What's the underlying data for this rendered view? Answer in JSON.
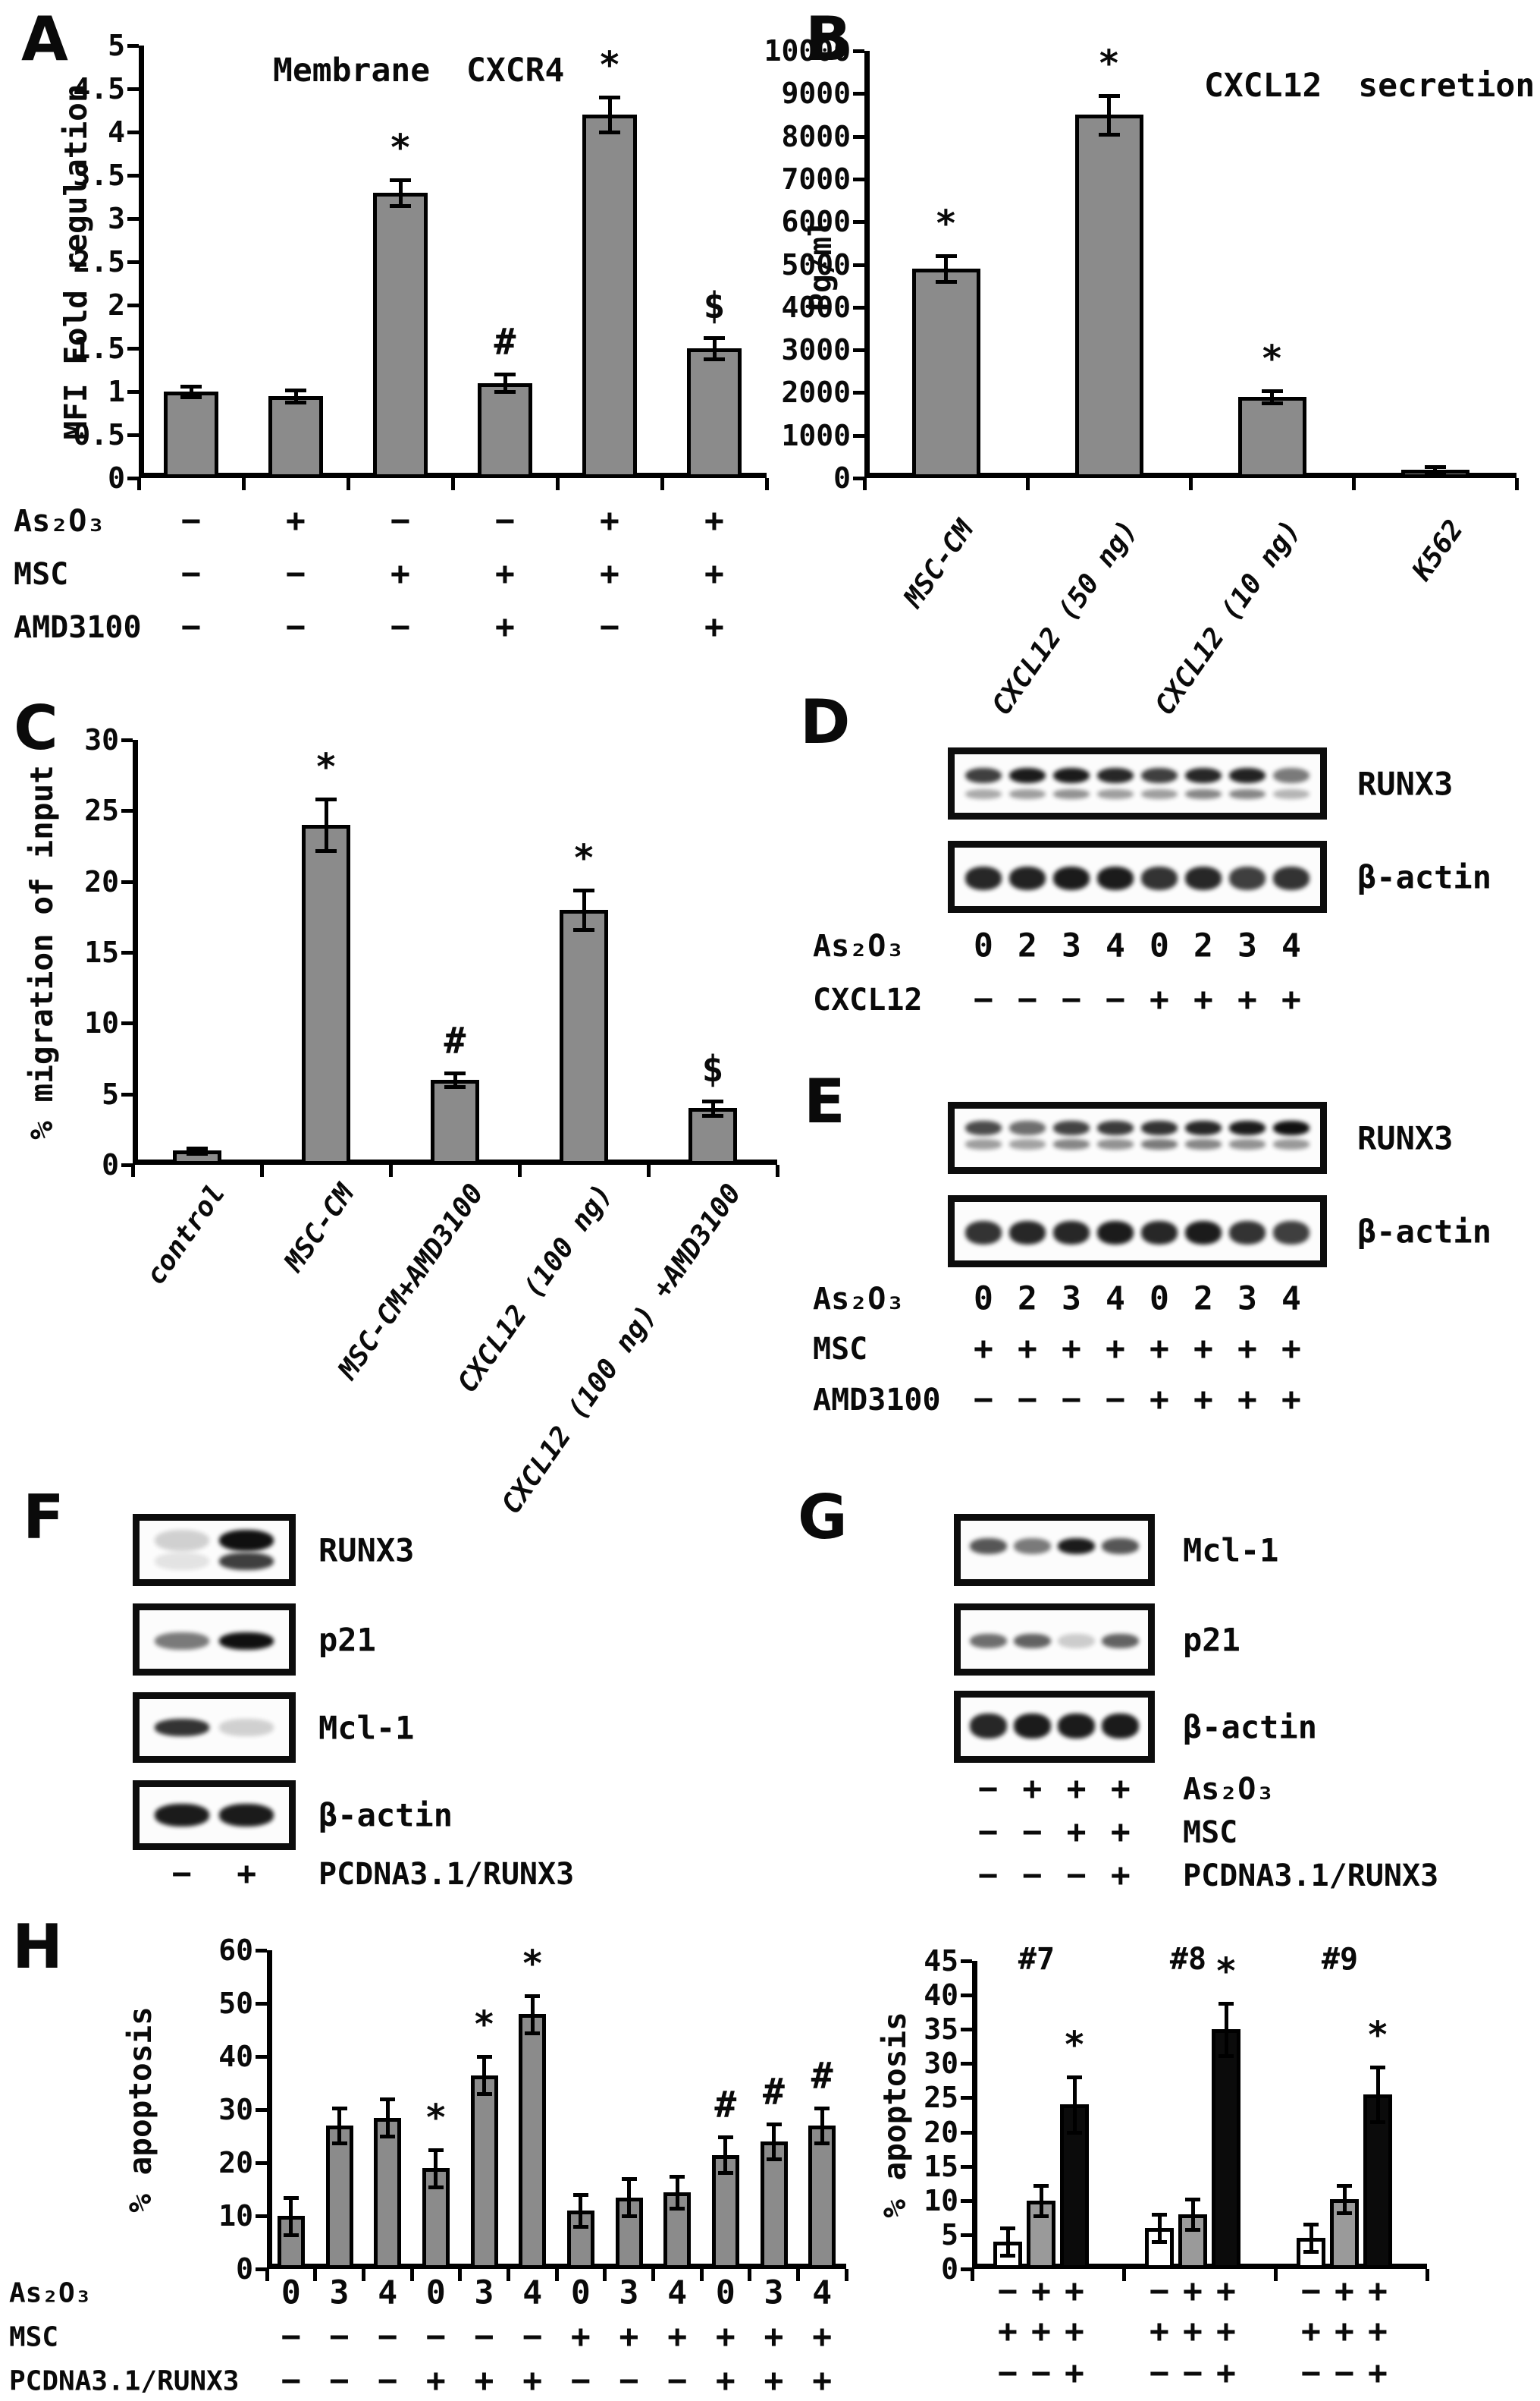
{
  "letters": {
    "A": "A",
    "B": "B",
    "C": "C",
    "D": "D",
    "E": "E",
    "F": "F",
    "G": "G",
    "H": "H"
  },
  "chart_data": [
    {
      "id": "chartA",
      "panel": "A",
      "type": "bar",
      "title": "Membrane CXCR4",
      "ylabel": "MFI Fold regulation",
      "ylim": [
        0,
        5
      ],
      "yticks": [
        "0",
        "0.5",
        "1",
        "1.5",
        "2",
        "2.5",
        "3",
        "3.5",
        "4",
        "4.5",
        "5"
      ],
      "values": [
        1.0,
        0.95,
        3.3,
        1.1,
        4.2,
        1.5
      ],
      "errors": [
        0.06,
        0.07,
        0.15,
        0.1,
        0.2,
        0.12
      ],
      "sig": [
        "",
        "",
        "*",
        "#",
        "*",
        "$"
      ],
      "bar_color": "#8b8b8b",
      "grid": false,
      "matrix": [
        {
          "label": "As₂O₃",
          "values": [
            "−",
            "+",
            "−",
            "−",
            "+",
            "+"
          ]
        },
        {
          "label": "MSC",
          "values": [
            "−",
            "−",
            "+",
            "+",
            "+",
            "+"
          ]
        },
        {
          "label": "AMD3100",
          "values": [
            "−",
            "−",
            "−",
            "+",
            "−",
            "+"
          ]
        }
      ]
    },
    {
      "id": "chartB",
      "panel": "B",
      "type": "bar",
      "title": "CXCL12 secretion",
      "ylabel": "Pg/ml",
      "ylim": [
        0,
        10000
      ],
      "yticks": [
        "0",
        "1000",
        "2000",
        "3000",
        "4000",
        "5000",
        "6000",
        "7000",
        "8000",
        "9000",
        "10000"
      ],
      "categories": [
        "MSC-CM",
        "CXCL12 (50 ng)",
        "CXCL12 (10 ng)",
        "K562"
      ],
      "values": [
        4900,
        8500,
        1900,
        200
      ],
      "errors": [
        300,
        450,
        150,
        60
      ],
      "sig": [
        "*",
        "*",
        "*",
        ""
      ],
      "bar_color": "#8b8b8b",
      "grid": false
    },
    {
      "id": "chartC",
      "panel": "C",
      "type": "bar",
      "title": "",
      "ylabel": "% migration of input",
      "ylim": [
        0,
        30
      ],
      "yticks": [
        "0",
        "5",
        "10",
        "15",
        "20",
        "25",
        "30"
      ],
      "categories": [
        "control",
        "MSC-CM",
        "MSC-CM+AMD3100",
        "CXCL12 (100 ng)",
        "CXCL12 (100 ng) +AMD3100"
      ],
      "values": [
        1,
        24,
        6,
        18,
        4
      ],
      "errors": [
        0.2,
        1.8,
        0.5,
        1.4,
        0.5
      ],
      "sig": [
        "",
        "*",
        "#",
        "*",
        "$"
      ],
      "bar_color": "#8b8b8b",
      "grid": false
    },
    {
      "id": "chartHL",
      "panel": "H",
      "type": "bar",
      "title": "",
      "ylabel": "% apoptosis",
      "ylim": [
        0,
        60
      ],
      "yticks": [
        "0",
        "10",
        "20",
        "30",
        "40",
        "50",
        "60"
      ],
      "values": [
        10,
        27,
        28.5,
        19,
        36.5,
        48,
        11,
        13.5,
        14.5,
        21.5,
        24,
        27
      ],
      "errors": [
        3.5,
        3.3,
        3.5,
        3.5,
        3.5,
        3.5,
        3,
        3.5,
        3,
        3.3,
        3.3,
        3.3
      ],
      "sig": [
        "",
        "",
        "",
        "*",
        "*",
        "*",
        "",
        "",
        "",
        "#",
        "#",
        "#"
      ],
      "bar_color": "#8b8b8b",
      "grid": false,
      "matrix": [
        {
          "label": "As₂O₃",
          "values": [
            "0",
            "3",
            "4",
            "0",
            "3",
            "4",
            "0",
            "3",
            "4",
            "0",
            "3",
            "4"
          ]
        },
        {
          "label": "MSC",
          "values": [
            "−",
            "−",
            "−",
            "−",
            "−",
            "−",
            "+",
            "+",
            "+",
            "+",
            "+",
            "+"
          ]
        },
        {
          "label": "PCDNA3.1/RUNX3",
          "values": [
            "−",
            "−",
            "−",
            "+",
            "+",
            "+",
            "−",
            "−",
            "−",
            "+",
            "+",
            "+"
          ]
        }
      ]
    },
    {
      "id": "chartHR",
      "panel": "H",
      "type": "grouped-bar",
      "title": "",
      "ylabel": "% apoptosis",
      "ylim": [
        0,
        45
      ],
      "yticks": [
        "0",
        "5",
        "10",
        "15",
        "20",
        "25",
        "30",
        "35",
        "40",
        "45"
      ],
      "groups": [
        "#7",
        "#8",
        "#9"
      ],
      "series_colors": [
        "#ffffff",
        "#9a9a9a",
        "#0b0b0b"
      ],
      "values": [
        [
          4,
          10,
          24
        ],
        [
          6,
          8,
          35
        ],
        [
          4.5,
          10.2,
          25.5
        ]
      ],
      "errors": [
        [
          2,
          2.2,
          4
        ],
        [
          2,
          2.2,
          3.8
        ],
        [
          2,
          2,
          4
        ]
      ],
      "sig": [
        [
          "",
          "",
          "*"
        ],
        [
          "",
          "",
          "*"
        ],
        [
          "",
          "",
          "*"
        ]
      ],
      "grid": false,
      "matrix": [
        {
          "label": "",
          "values": [
            [
              "−",
              "+",
              "+"
            ],
            [
              "−",
              "+",
              "+"
            ],
            [
              "−",
              "+",
              "+"
            ]
          ]
        },
        {
          "label": "",
          "values": [
            [
              "+",
              "+",
              "+"
            ],
            [
              "+",
              "+",
              "+"
            ],
            [
              "+",
              "+",
              "+"
            ]
          ]
        },
        {
          "label": "",
          "values": [
            [
              "−",
              "−",
              "+"
            ],
            [
              "−",
              "−",
              "+"
            ],
            [
              "−",
              "−",
              "+"
            ]
          ]
        }
      ]
    }
  ],
  "blots": {
    "D": {
      "boxes": [
        {
          "label": "RUNX3",
          "lanes": 8,
          "bands": [
            {
              "y": 0.28,
              "h": 0.22,
              "i": [
                0.8,
                0.95,
                0.95,
                0.9,
                0.8,
                0.9,
                0.92,
                0.55
              ]
            },
            {
              "y": 0.58,
              "h": 0.14,
              "i": [
                0.35,
                0.4,
                0.45,
                0.4,
                0.4,
                0.5,
                0.5,
                0.3
              ]
            }
          ]
        },
        {
          "label": "β-actin",
          "lanes": 8,
          "bands": [
            {
              "y": 0.36,
              "h": 0.32,
              "i": [
                0.9,
                0.92,
                0.95,
                0.95,
                0.85,
                0.9,
                0.8,
                0.85
              ]
            }
          ]
        }
      ],
      "matrix": [
        {
          "label": "As₂O₃",
          "values": [
            "0",
            "2",
            "3",
            "4",
            "0",
            "2",
            "3",
            "4"
          ]
        },
        {
          "label": "CXCL12",
          "values": [
            "−",
            "−",
            "−",
            "−",
            "+",
            "+",
            "+",
            "+"
          ]
        }
      ]
    },
    "E": {
      "boxes": [
        {
          "label": "RUNX3",
          "lanes": 8,
          "bands": [
            {
              "y": 0.26,
              "h": 0.2,
              "i": [
                0.75,
                0.6,
                0.78,
                0.82,
                0.85,
                0.9,
                0.95,
                1.0
              ]
            },
            {
              "y": 0.52,
              "h": 0.14,
              "i": [
                0.4,
                0.38,
                0.5,
                0.45,
                0.55,
                0.5,
                0.45,
                0.42
              ]
            }
          ]
        },
        {
          "label": "β-actin",
          "lanes": 8,
          "bands": [
            {
              "y": 0.36,
              "h": 0.32,
              "i": [
                0.85,
                0.9,
                0.9,
                0.95,
                0.9,
                0.95,
                0.85,
                0.8
              ]
            }
          ]
        }
      ],
      "matrix": [
        {
          "label": "As₂O₃",
          "values": [
            "0",
            "2",
            "3",
            "4",
            "0",
            "2",
            "3",
            "4"
          ]
        },
        {
          "label": "MSC",
          "values": [
            "+",
            "+",
            "+",
            "+",
            "+",
            "+",
            "+",
            "+"
          ]
        },
        {
          "label": "AMD3100",
          "values": [
            "−",
            "−",
            "−",
            "−",
            "+",
            "+",
            "+",
            "+"
          ]
        }
      ]
    },
    "F": {
      "boxes": [
        {
          "label": "RUNX3",
          "lanes": 2,
          "bands": [
            {
              "y": 0.22,
              "h": 0.3,
              "i": [
                0.18,
                1.0
              ]
            },
            {
              "y": 0.54,
              "h": 0.24,
              "i": [
                0.1,
                0.8
              ]
            }
          ]
        },
        {
          "label": "p21",
          "lanes": 2,
          "bands": [
            {
              "y": 0.4,
              "h": 0.24,
              "i": [
                0.55,
                1.0
              ]
            }
          ]
        },
        {
          "label": "Mcl-1",
          "lanes": 2,
          "bands": [
            {
              "y": 0.38,
              "h": 0.24,
              "i": [
                0.85,
                0.18
              ]
            }
          ]
        },
        {
          "label": "β-actin",
          "lanes": 2,
          "bands": [
            {
              "y": 0.34,
              "h": 0.32,
              "i": [
                0.95,
                0.95
              ]
            }
          ]
        }
      ],
      "matrix": [
        {
          "label": "PCDNA3.1/RUNX3",
          "values": [
            "−",
            "+"
          ]
        }
      ]
    },
    "G": {
      "boxes": [
        {
          "label": "Mcl-1",
          "lanes": 4,
          "bands": [
            {
              "y": 0.34,
              "h": 0.22,
              "i": [
                0.7,
                0.55,
                0.95,
                0.7
              ]
            }
          ]
        },
        {
          "label": "p21",
          "lanes": 4,
          "bands": [
            {
              "y": 0.42,
              "h": 0.2,
              "i": [
                0.6,
                0.65,
                0.2,
                0.65
              ]
            }
          ]
        },
        {
          "label": "β-actin",
          "lanes": 4,
          "bands": [
            {
              "y": 0.32,
              "h": 0.34,
              "i": [
                0.9,
                0.95,
                0.95,
                0.95
              ]
            }
          ]
        }
      ],
      "matrix": [
        {
          "label": "As₂O₃",
          "values": [
            "−",
            "+",
            "+",
            "+"
          ]
        },
        {
          "label": "MSC",
          "values": [
            "−",
            "−",
            "+",
            "+"
          ]
        },
        {
          "label": "PCDNA3.1/RUNX3",
          "values": [
            "−",
            "−",
            "−",
            "+"
          ]
        }
      ]
    }
  }
}
